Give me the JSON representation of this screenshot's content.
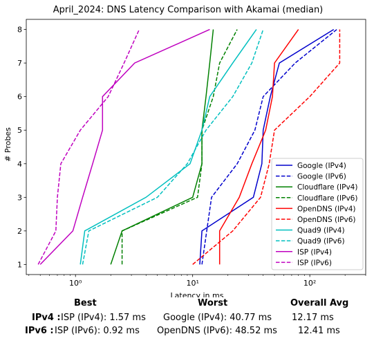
{
  "chart_data": {
    "type": "line",
    "title": "April_2024: DNS Latency Comparison with Akamai (median)",
    "xlabel": "Latency in ms",
    "ylabel": "# Probes",
    "xscale": "log",
    "xlim": [
      0.38,
      300
    ],
    "ylim": [
      0.7,
      8.3
    ],
    "xticks": [
      {
        "value": 1,
        "label": "10⁰"
      },
      {
        "value": 10,
        "label": "10¹"
      },
      {
        "value": 100,
        "label": "10²"
      }
    ],
    "yticks": [
      1,
      2,
      3,
      4,
      5,
      6,
      7,
      8
    ],
    "legend": "lower-right",
    "grid": false,
    "series": [
      {
        "name": "Google (IPv4)",
        "color": "#0000cc",
        "dash": false,
        "points": [
          [
            11.5,
            1
          ],
          [
            12,
            2
          ],
          [
            33,
            3
          ],
          [
            39,
            4
          ],
          [
            40,
            5
          ],
          [
            46,
            6
          ],
          [
            55,
            7
          ],
          [
            160,
            8
          ]
        ]
      },
      {
        "name": "Google (IPv6)",
        "color": "#0000cc",
        "dash": true,
        "points": [
          [
            12,
            1
          ],
          [
            14.5,
            3
          ],
          [
            24,
            4
          ],
          [
            34,
            5
          ],
          [
            40,
            6
          ],
          [
            75,
            7
          ],
          [
            170,
            8
          ]
        ]
      },
      {
        "name": "Cloudflare (IPv4)",
        "color": "#008000",
        "dash": false,
        "points": [
          [
            2,
            1
          ],
          [
            2.5,
            2
          ],
          [
            10,
            3
          ],
          [
            12,
            4
          ],
          [
            12,
            5
          ],
          [
            13,
            6
          ],
          [
            14,
            7
          ],
          [
            15,
            8
          ]
        ]
      },
      {
        "name": "Cloudflare (IPv6)",
        "color": "#008000",
        "dash": true,
        "points": [
          [
            2.5,
            1
          ],
          [
            2.5,
            2
          ],
          [
            11,
            3
          ],
          [
            12,
            4
          ],
          [
            12,
            5
          ],
          [
            15,
            6
          ],
          [
            17,
            7
          ],
          [
            24,
            8
          ]
        ]
      },
      {
        "name": "OpenDNS (IPv4)",
        "color": "#ff0000",
        "dash": false,
        "points": [
          [
            17,
            1
          ],
          [
            17,
            2
          ],
          [
            25,
            3
          ],
          [
            32,
            4
          ],
          [
            42,
            5
          ],
          [
            48,
            6
          ],
          [
            50,
            7
          ],
          [
            80,
            8
          ]
        ]
      },
      {
        "name": "OpenDNS (IPv6)",
        "color": "#ff0000",
        "dash": true,
        "points": [
          [
            10,
            1
          ],
          [
            22,
            2
          ],
          [
            38,
            3
          ],
          [
            45,
            4
          ],
          [
            50,
            5
          ],
          [
            100,
            6
          ],
          [
            180,
            7
          ],
          [
            180,
            8
          ]
        ]
      },
      {
        "name": "Quad9 (IPv4)",
        "color": "#00bfbf",
        "dash": false,
        "points": [
          [
            1.1,
            1
          ],
          [
            1.2,
            2
          ],
          [
            4,
            3
          ],
          [
            9.5,
            4
          ],
          [
            12,
            5
          ],
          [
            14,
            6
          ],
          [
            22,
            7
          ],
          [
            35,
            8
          ]
        ]
      },
      {
        "name": "Quad9 (IPv6)",
        "color": "#00bfbf",
        "dash": true,
        "points": [
          [
            1.15,
            1
          ],
          [
            1.3,
            2
          ],
          [
            5,
            3
          ],
          [
            9,
            4
          ],
          [
            13,
            5
          ],
          [
            22,
            6
          ],
          [
            32,
            7
          ],
          [
            40,
            8
          ]
        ]
      },
      {
        "name": "ISP (IPv4)",
        "color": "#bf00bf",
        "dash": false,
        "points": [
          [
            0.5,
            1
          ],
          [
            0.95,
            2
          ],
          [
            1.15,
            3
          ],
          [
            1.4,
            4
          ],
          [
            1.7,
            5
          ],
          [
            1.7,
            6
          ],
          [
            3.2,
            7
          ],
          [
            14,
            8
          ]
        ]
      },
      {
        "name": "ISP (IPv6)",
        "color": "#bf00bf",
        "dash": true,
        "points": [
          [
            0.48,
            1
          ],
          [
            0.68,
            2
          ],
          [
            0.7,
            3
          ],
          [
            0.75,
            4
          ],
          [
            1.1,
            5
          ],
          [
            1.9,
            6
          ],
          [
            2.6,
            7
          ],
          [
            3.5,
            8
          ]
        ]
      }
    ]
  },
  "summary": {
    "headers": {
      "best": "Best",
      "worst": "Worst",
      "avg": "Overall Avg"
    },
    "rows": [
      {
        "label": "IPv4 :",
        "best": "ISP (IPv4): 1.57 ms",
        "worst": "Google (IPv4): 40.77 ms",
        "avg": "12.17 ms"
      },
      {
        "label": "IPv6 :",
        "best": "ISP (IPv6): 0.92 ms",
        "worst": "OpenDNS (IPv6): 48.52 ms",
        "avg": "12.41 ms"
      }
    ]
  }
}
